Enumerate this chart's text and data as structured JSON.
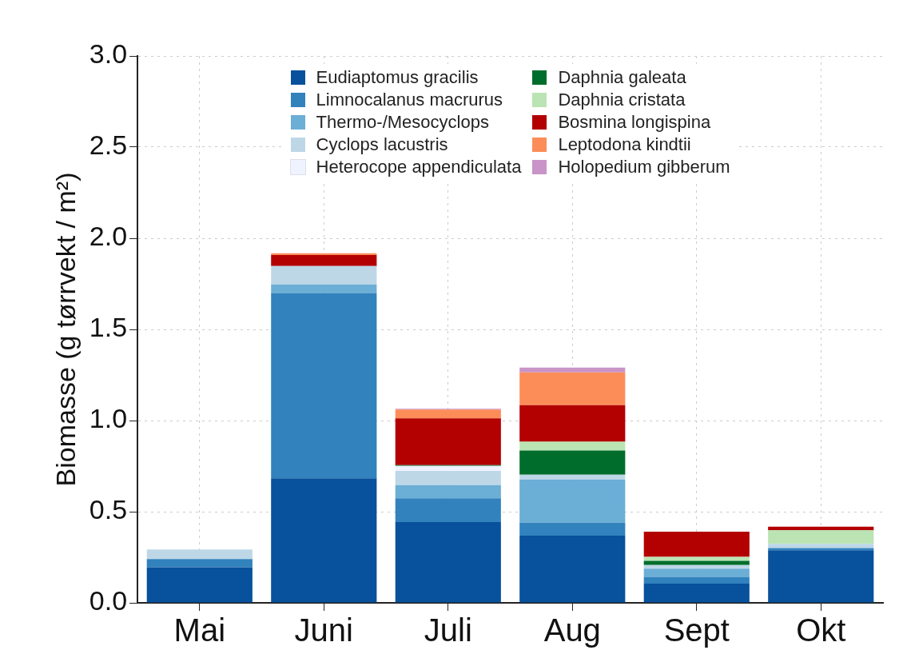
{
  "chart_data": {
    "type": "bar",
    "stacked": true,
    "ylabel": "Biomasse (g tørrvekt / m²)",
    "categories": [
      "Mai",
      "Juni",
      "Juli",
      "Aug",
      "Sept",
      "Okt"
    ],
    "series": [
      {
        "name": "Eudiaptomus gracilis",
        "color": "#08519c",
        "values": [
          0.195,
          0.683,
          0.443,
          0.368,
          0.105,
          0.288
        ]
      },
      {
        "name": "Limnocalanus macrurus",
        "color": "#3182bd",
        "values": [
          0.045,
          1.017,
          0.13,
          0.072,
          0.037,
          0.012
        ]
      },
      {
        "name": "Thermo-/Mesocyclops",
        "color": "#6baed6",
        "values": [
          0,
          0.047,
          0.073,
          0.236,
          0.046,
          0
        ]
      },
      {
        "name": "Cyclops lacustris",
        "color": "#bdd7e7",
        "values": [
          0.053,
          0.101,
          0.078,
          0.027,
          0.019,
          0.023
        ]
      },
      {
        "name": "Heterocope appendiculata",
        "color": "#eff3ff",
        "values": [
          0,
          0,
          0.027,
          0,
          0,
          0
        ]
      },
      {
        "name": "Daphnia galeata",
        "color": "#006d2c",
        "values": [
          0,
          0,
          0.005,
          0.133,
          0.023,
          0
        ]
      },
      {
        "name": "Daphnia cristata",
        "color": "#bae4b3",
        "values": [
          0,
          0,
          0,
          0.048,
          0.022,
          0.075
        ]
      },
      {
        "name": "Bosmina longispina",
        "color": "#b30000",
        "values": [
          0,
          0.06,
          0.256,
          0.2,
          0.138,
          0.02
        ]
      },
      {
        "name": "Leptodona kindtii",
        "color": "#fc8d59",
        "values": [
          0,
          0.01,
          0.048,
          0.18,
          0,
          0
        ]
      },
      {
        "name": "Holopedium gibberum",
        "color": "#c994c7",
        "values": [
          0,
          0,
          0.005,
          0.027,
          0,
          0
        ]
      }
    ],
    "ylim": [
      0,
      3
    ],
    "yticks": [
      {
        "value": 0,
        "label": "0.0"
      },
      0.5,
      {
        "value": 1,
        "label": "1.0"
      },
      1.5,
      {
        "value": 2,
        "label": "2.0"
      },
      2.5,
      {
        "value": 3,
        "label": "3.0"
      }
    ],
    "grid": true,
    "legend": "top"
  }
}
